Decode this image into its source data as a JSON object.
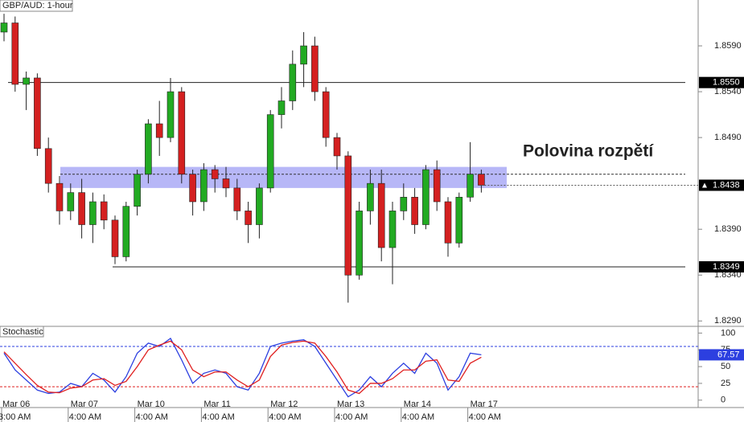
{
  "chart_data": [
    {
      "type": "candlestick",
      "title": "GBP/AUD: 1-hour",
      "categories": [
        {
          "date": "Mar 06",
          "time": "3:00 AM"
        },
        null,
        null,
        null,
        null,
        null,
        {
          "date": "Mar 07",
          "time": "4:00 AM"
        },
        null,
        null,
        null,
        null,
        null,
        {
          "date": "Mar 10",
          "time": "4:00 AM"
        },
        null,
        null,
        null,
        null,
        null,
        {
          "date": "Mar 11",
          "time": "4:00 AM"
        },
        null,
        null,
        null,
        null,
        null,
        {
          "date": "Mar 12",
          "time": "4:00 AM"
        },
        null,
        null,
        null,
        null,
        null,
        {
          "date": "Mar 13",
          "time": "4:00 AM"
        },
        null,
        null,
        null,
        null,
        null,
        {
          "date": "Mar 14",
          "time": "4:00 AM"
        },
        null,
        null,
        null,
        null,
        null,
        {
          "date": "Mar 17",
          "time": "4:00 AM"
        },
        null
      ],
      "open": [
        1.8605,
        1.8615,
        1.8548,
        1.8555,
        1.8478,
        1.844,
        1.841,
        1.843,
        1.8395,
        1.842,
        1.84,
        1.836,
        1.8415,
        1.845,
        1.8505,
        1.849,
        1.854,
        1.845,
        1.842,
        1.8455,
        1.8445,
        1.8435,
        1.841,
        1.8395,
        1.8435,
        1.8515,
        1.853,
        1.857,
        1.859,
        1.854,
        1.849,
        1.847,
        1.834,
        1.841,
        1.844,
        1.837,
        1.841,
        1.8425,
        1.8395,
        1.8455,
        1.842,
        1.8375,
        1.8425,
        1.845
      ],
      "high": [
        1.8625,
        1.8622,
        1.8562,
        1.856,
        1.849,
        1.8448,
        1.844,
        1.8445,
        1.843,
        1.8428,
        1.8405,
        1.842,
        1.8455,
        1.851,
        1.853,
        1.8555,
        1.8545,
        1.8455,
        1.8462,
        1.846,
        1.8458,
        1.8445,
        1.842,
        1.844,
        1.852,
        1.8545,
        1.8585,
        1.8605,
        1.86,
        1.8545,
        1.8495,
        1.8475,
        1.842,
        1.8455,
        1.8455,
        1.842,
        1.844,
        1.8435,
        1.846,
        1.8465,
        1.8425,
        1.843,
        1.8485,
        1.8455
      ],
      "low": [
        1.8595,
        1.854,
        1.852,
        1.847,
        1.843,
        1.8395,
        1.84,
        1.838,
        1.8375,
        1.839,
        1.8352,
        1.8355,
        1.8405,
        1.844,
        1.847,
        1.8485,
        1.844,
        1.8405,
        1.841,
        1.843,
        1.8425,
        1.84,
        1.8375,
        1.838,
        1.843,
        1.85,
        1.852,
        1.8545,
        1.853,
        1.848,
        1.8455,
        1.831,
        1.8335,
        1.8395,
        1.8355,
        1.833,
        1.84,
        1.8385,
        1.839,
        1.841,
        1.836,
        1.837,
        1.842,
        1.843
      ],
      "close": [
        1.8615,
        1.8548,
        1.8555,
        1.8478,
        1.844,
        1.841,
        1.843,
        1.8395,
        1.842,
        1.84,
        1.836,
        1.8415,
        1.845,
        1.8505,
        1.849,
        1.854,
        1.845,
        1.842,
        1.8455,
        1.8445,
        1.8435,
        1.841,
        1.8395,
        1.8435,
        1.8515,
        1.853,
        1.857,
        1.859,
        1.854,
        1.849,
        1.847,
        1.834,
        1.841,
        1.844,
        1.837,
        1.841,
        1.8425,
        1.8395,
        1.8455,
        1.842,
        1.8375,
        1.8425,
        1.845,
        1.8438
      ],
      "up_color": "#22aa22",
      "down_color": "#d42020",
      "ylim": [
        1.8285,
        1.864
      ],
      "yticks": [
        {
          "value": 1.829,
          "label": "1.8290"
        },
        {
          "value": 1.834,
          "label": "1.8340"
        },
        {
          "value": 1.839,
          "label": "1.8390"
        },
        {
          "value": 1.849,
          "label": "1.8490"
        },
        {
          "value": 1.854,
          "label": "1.8540"
        },
        {
          "value": 1.859,
          "label": "1.8590"
        }
      ],
      "levels": [
        {
          "value": 1.855,
          "label": "1.8550"
        },
        {
          "value": 1.8349,
          "label": "1.8349"
        }
      ],
      "band": [
        1.8435,
        1.8458
      ],
      "band_mid": 1.845,
      "band_color": "#7b7bf0",
      "annotation": "Polovina rozpětí"
    },
    {
      "type": "line",
      "title": "Stochastic",
      "series": [
        {
          "color": "#2c3fe0",
          "values": [
            70,
            45,
            30,
            15,
            10,
            12,
            25,
            20,
            40,
            30,
            12,
            35,
            70,
            85,
            80,
            92,
            60,
            25,
            40,
            45,
            40,
            20,
            15,
            40,
            80,
            85,
            88,
            90,
            80,
            55,
            30,
            5,
            15,
            35,
            20,
            40,
            55,
            40,
            70,
            55,
            15,
            35,
            70,
            67.57
          ]
        },
        {
          "color": "#e02020",
          "values": [
            72,
            55,
            38,
            22,
            12,
            11,
            18,
            20,
            30,
            32,
            22,
            28,
            50,
            75,
            82,
            88,
            75,
            45,
            35,
            42,
            42,
            30,
            20,
            30,
            65,
            82,
            86,
            88,
            85,
            65,
            42,
            15,
            10,
            25,
            25,
            32,
            45,
            45,
            58,
            60,
            30,
            28,
            55,
            64
          ]
        }
      ],
      "ylim": [
        -11,
        110
      ],
      "yticks": [
        0,
        25,
        50,
        75,
        100
      ],
      "levels": [
        {
          "value": 80,
          "color": "#2c3fe0"
        },
        {
          "value": 20,
          "color": "#e02020"
        }
      ]
    }
  ]
}
